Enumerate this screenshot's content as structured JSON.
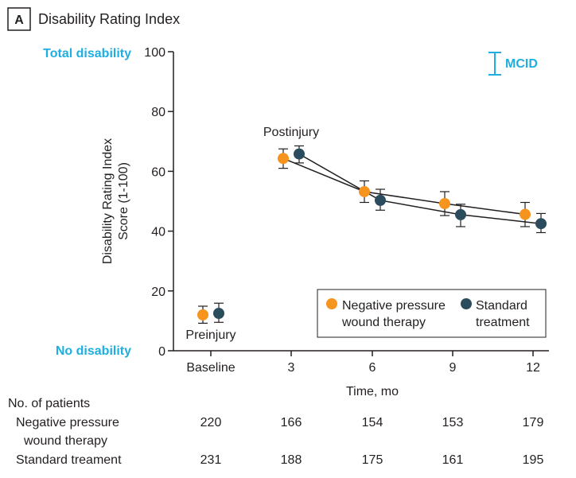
{
  "panel": {
    "letter": "A",
    "title": "Disability Rating Index"
  },
  "chart_data": {
    "type": "line",
    "title": "Disability Rating Index",
    "ylabel": "Disability Rating Index Score (1-100)",
    "ylabel_lines": [
      "Disability Rating Index",
      "Score (1-100)"
    ],
    "xlabel": "Time, mo",
    "ylim": [
      0,
      100
    ],
    "yticks": [
      0,
      20,
      40,
      60,
      80,
      100
    ],
    "categories": [
      "Baseline",
      "3",
      "6",
      "9",
      "12"
    ],
    "y_annotations": {
      "top": "Total disability",
      "bottom": "No disability"
    },
    "mcid_label": "MCID",
    "annotations": {
      "postinjury": "Postinjury",
      "preinjury": "Preinjury"
    },
    "series": [
      {
        "name": "Negative pressure wound therapy",
        "legend_lines": [
          "Negative pressure",
          "wound therapy"
        ],
        "color": "#f7941d",
        "values": [
          12.0,
          64.3,
          53.2,
          49.2,
          45.6
        ],
        "ci_low": [
          9.2,
          61.0,
          49.6,
          45.2,
          41.5
        ],
        "ci_high": [
          14.9,
          67.5,
          56.8,
          53.2,
          49.6
        ]
      },
      {
        "name": "Standard treatment",
        "legend_lines": [
          "Standard",
          "treatment"
        ],
        "color": "#2b4c5c",
        "values": [
          12.5,
          65.8,
          50.3,
          45.5,
          42.5
        ],
        "ci_low": [
          9.5,
          62.8,
          47.0,
          41.5,
          39.5
        ],
        "ci_high": [
          15.9,
          68.5,
          54.0,
          49.0,
          45.9
        ]
      }
    ],
    "patients_table": {
      "title": "No. of patients",
      "rows": [
        {
          "label_lines": [
            "Negative pressure",
            "wound therapy"
          ],
          "values": [
            "220",
            "166",
            "154",
            "153",
            "179"
          ]
        },
        {
          "label_lines": [
            "Standard treament"
          ],
          "values": [
            "231",
            "188",
            "175",
            "161",
            "195"
          ]
        }
      ]
    }
  }
}
